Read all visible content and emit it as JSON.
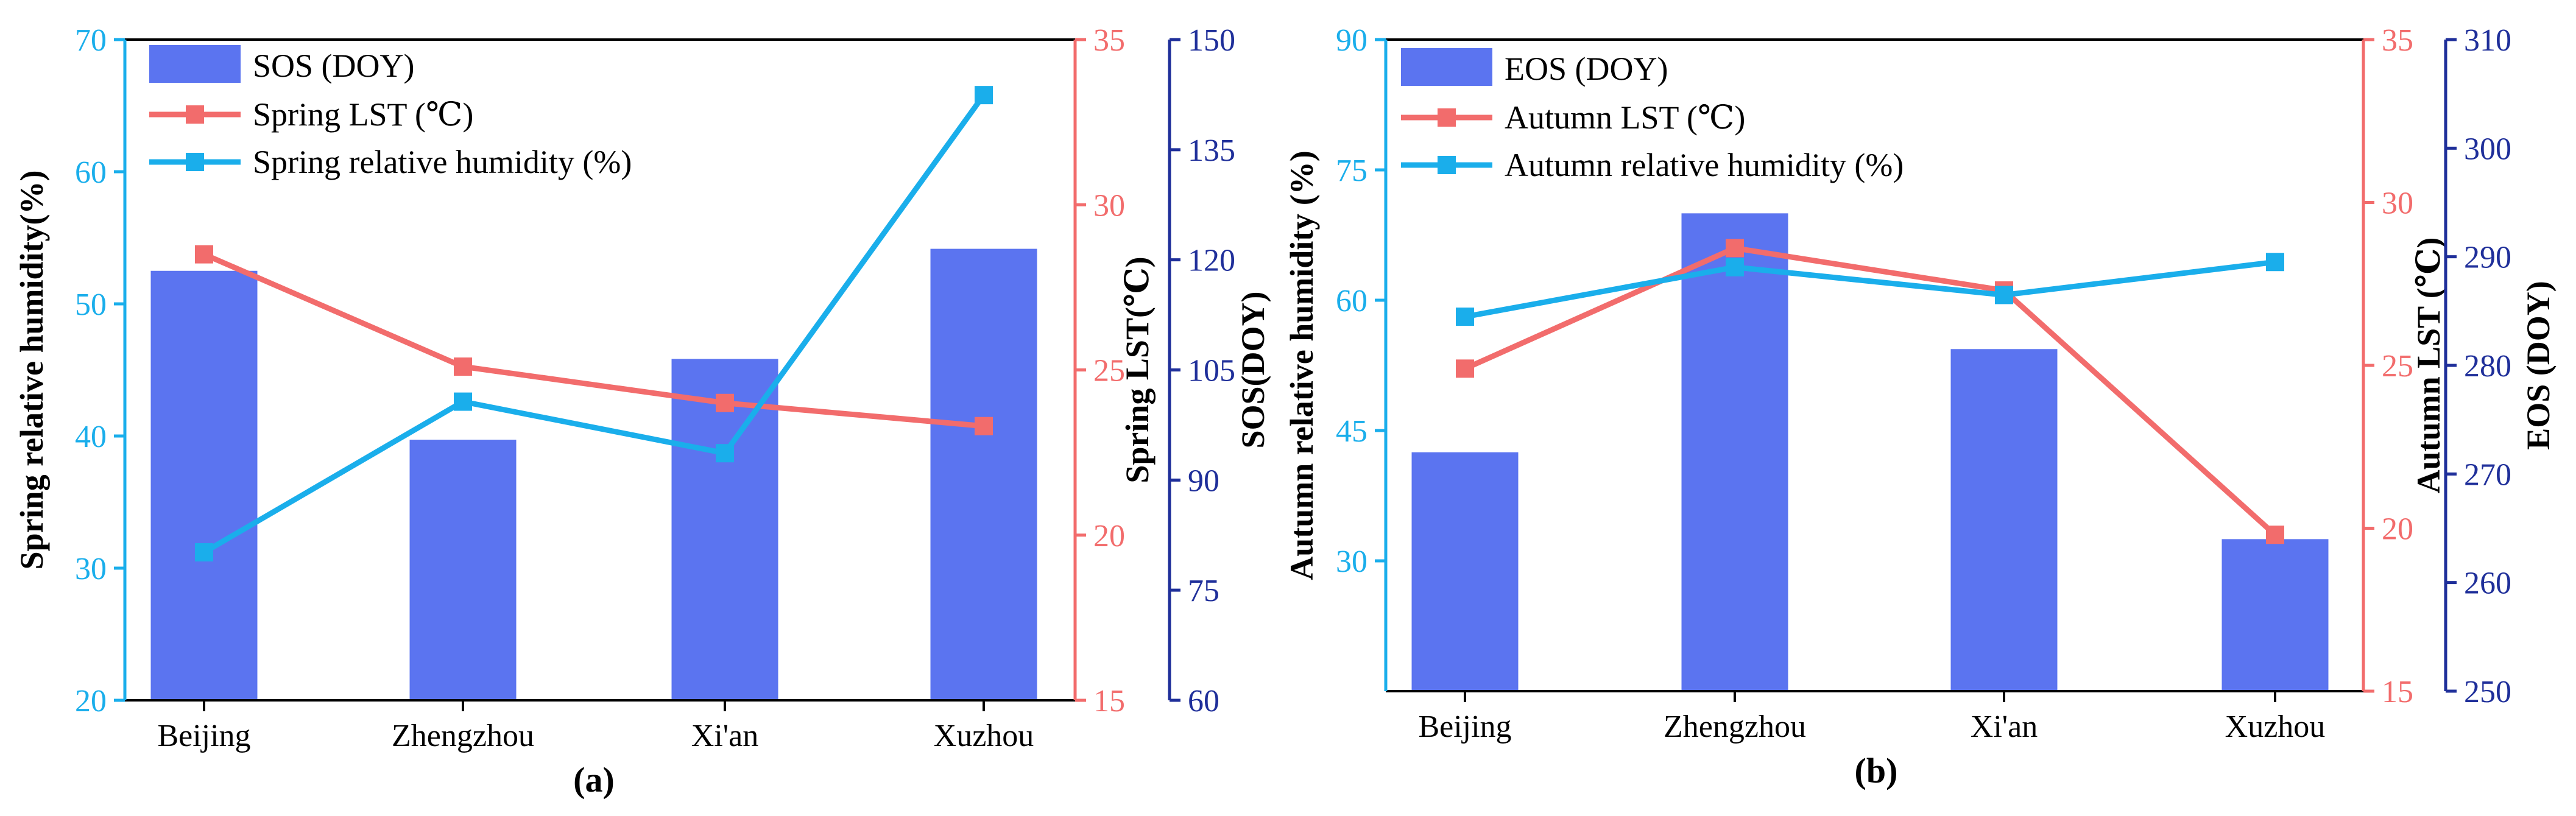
{
  "colors": {
    "bar": "#5B74F0",
    "lst": "#F26C6C",
    "humidity": "#1AAEEB",
    "doy_axis": "#1F2F9A",
    "black": "#000000"
  },
  "chart_data": [
    {
      "type": "bar",
      "panel_label": "(a)",
      "categories": [
        "Beijing",
        "Zhengzhou",
        "Xi'an",
        "Xuzhou"
      ],
      "series": [
        {
          "name": "SOS (DOY)",
          "kind": "bar",
          "axis": "doy",
          "values": [
            118.5,
            95.5,
            106.5,
            121.5
          ]
        },
        {
          "name": "Spring LST (℃)",
          "kind": "line",
          "axis": "lst",
          "values": [
            28.5,
            25.1,
            24.0,
            23.3
          ]
        },
        {
          "name": "Spring relative humidity (%)",
          "kind": "line",
          "axis": "rh",
          "values": [
            31.2,
            42.6,
            38.7,
            65.8
          ]
        }
      ],
      "axes": {
        "rh": {
          "label": "Spring relative humidity(%)",
          "min": 20,
          "max": 70,
          "ticks": [
            20,
            30,
            40,
            50,
            60,
            70
          ]
        },
        "lst": {
          "label": "Spring LST(℃)",
          "min": 15,
          "max": 35,
          "ticks": [
            15,
            20,
            25,
            30,
            35
          ]
        },
        "doy": {
          "label": "SOS(DOY)",
          "min": 60,
          "max": 150,
          "ticks": [
            60,
            75,
            90,
            105,
            120,
            135,
            150
          ]
        }
      }
    },
    {
      "type": "bar",
      "panel_label": "(b)",
      "categories": [
        "Beijing",
        "Zhengzhou",
        "Xi'an",
        "Xuzhou"
      ],
      "series": [
        {
          "name": "EOS (DOY)",
          "kind": "bar",
          "axis": "doy",
          "values": [
            272,
            294,
            281.5,
            264
          ]
        },
        {
          "name": "Autumn LST (℃)",
          "kind": "line",
          "axis": "lst",
          "values": [
            24.9,
            28.6,
            27.3,
            19.8
          ]
        },
        {
          "name": "Autumn relative humidity (%)",
          "kind": "line",
          "axis": "rh",
          "values": [
            58.1,
            63.8,
            60.6,
            64.4
          ]
        }
      ],
      "axes": {
        "rh": {
          "label": "Autumn relative humidity (%)",
          "min": 15,
          "max": 90,
          "ticks": [
            30,
            45,
            60,
            75,
            90
          ]
        },
        "lst": {
          "label": "Autumn LST (℃)",
          "min": 15,
          "max": 35,
          "ticks": [
            15,
            20,
            25,
            30,
            35
          ]
        },
        "doy": {
          "label": "EOS (DOY)",
          "min": 250,
          "max": 310,
          "ticks": [
            250,
            260,
            270,
            280,
            290,
            300,
            310
          ]
        }
      }
    }
  ]
}
